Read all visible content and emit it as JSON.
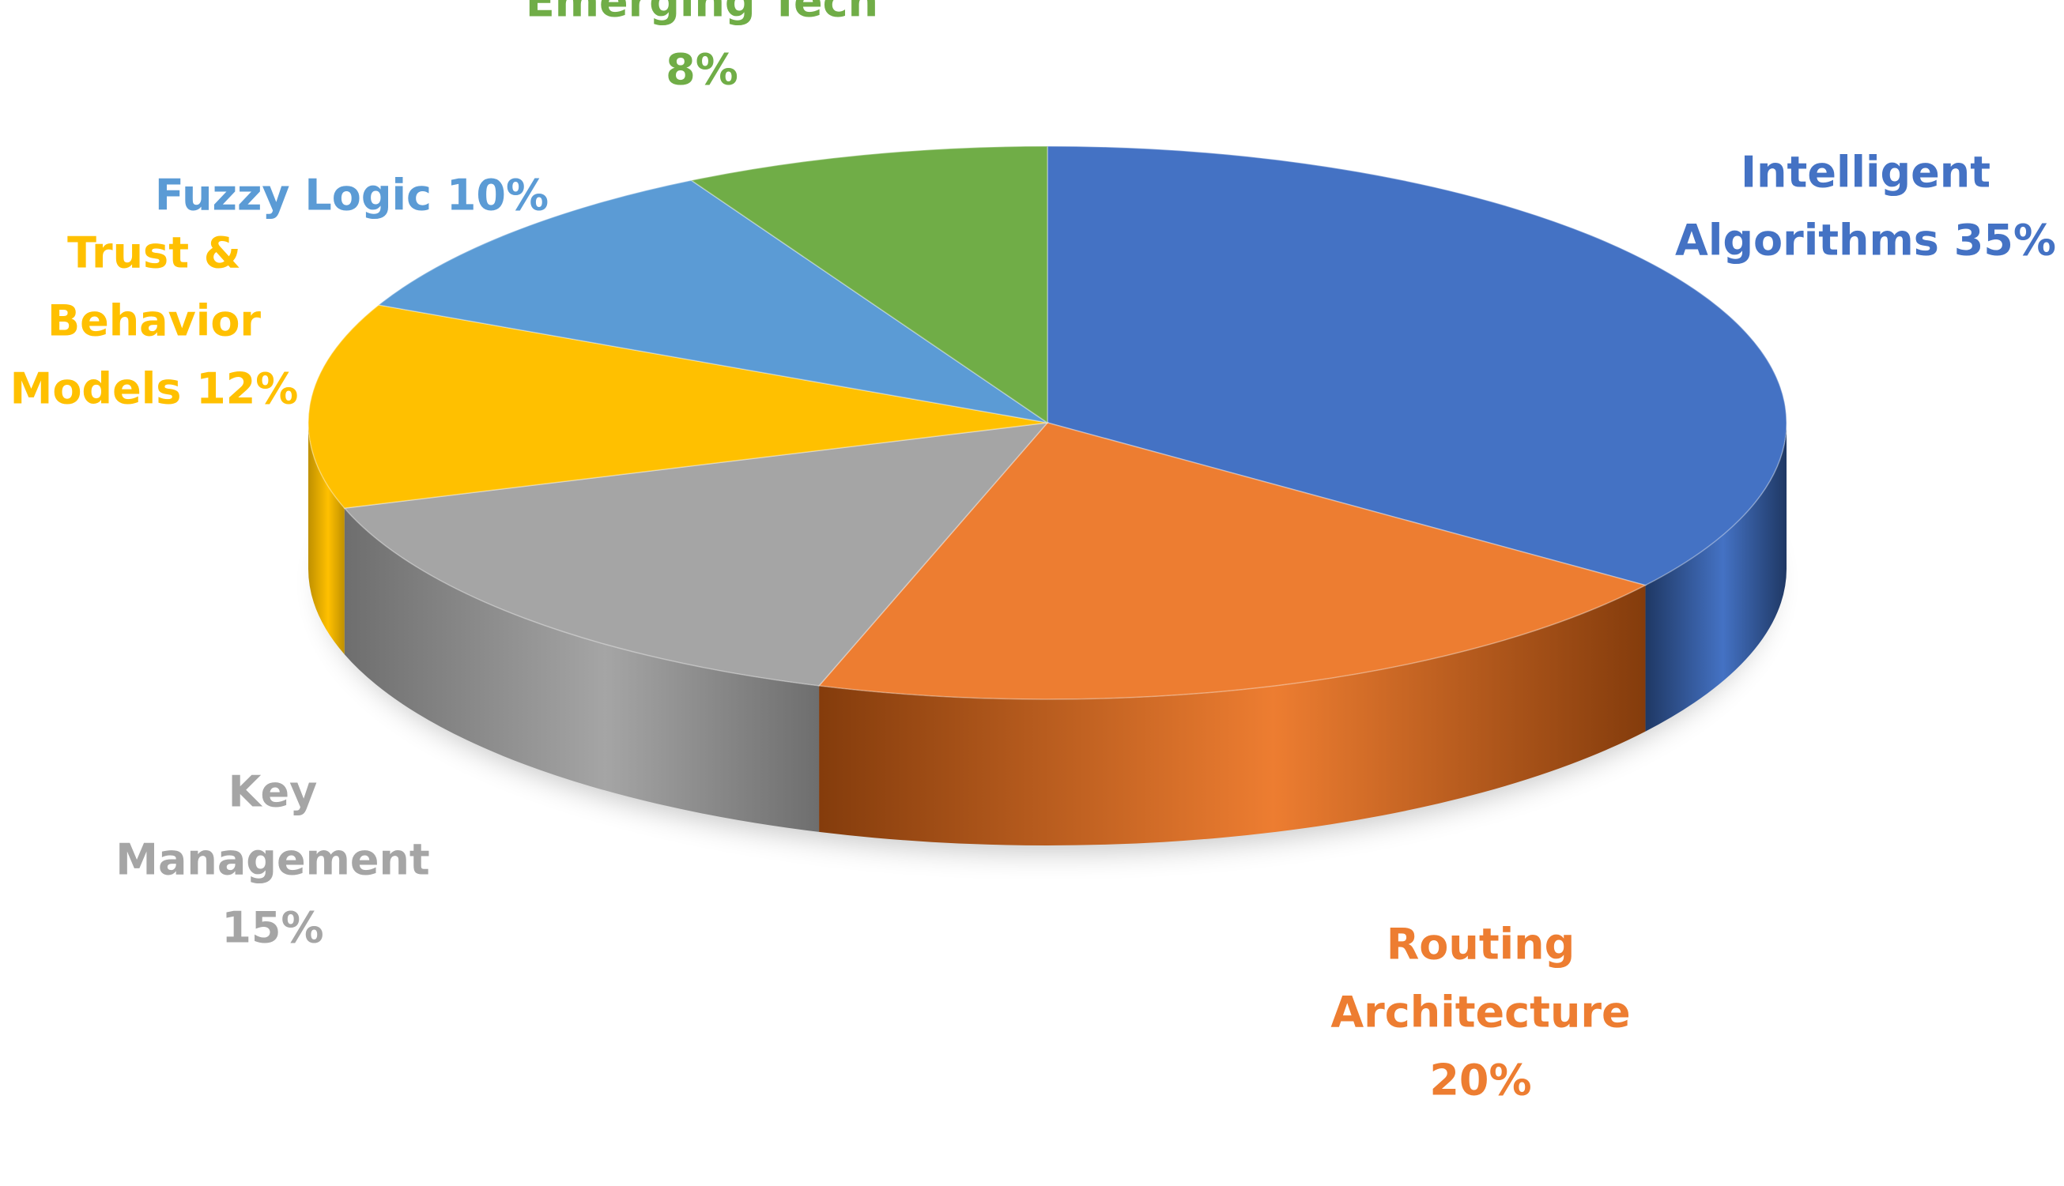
{
  "chart_data": {
    "type": "pie",
    "style": "3d",
    "title": "",
    "slices": [
      {
        "label": "Intelligent Algorithms",
        "value": 35,
        "display": [
          "Intelligent",
          "Algorithms 35%"
        ],
        "color": "#4472C4",
        "side_color": "#1F3864"
      },
      {
        "label": "Routing Architecture",
        "value": 20,
        "display": [
          "Routing",
          "Architecture",
          "20%"
        ],
        "color": "#ED7D31",
        "side_color": "#843C0C"
      },
      {
        "label": "Key Management",
        "value": 15,
        "display": [
          "Key",
          "Management",
          "15%"
        ],
        "color": "#A5A5A5",
        "side_color": "#6E6E6E"
      },
      {
        "label": "Trust & Behavior Models",
        "value": 12,
        "display": [
          "Trust &",
          "Behavior",
          "Models 12%"
        ],
        "color": "#FFC000",
        "side_color": "#BF9000"
      },
      {
        "label": "Fuzzy Logic",
        "value": 10,
        "display": [
          "Fuzzy Logic 10%"
        ],
        "color": "#5B9BD5",
        "side_color": "#2E75B6"
      },
      {
        "label": "Emerging Tech",
        "value": 8,
        "display": [
          "Emerging Tech",
          "8%"
        ],
        "color": "#70AD47",
        "side_color": "#548235"
      }
    ],
    "legend": "none",
    "data_labels": "outside"
  }
}
